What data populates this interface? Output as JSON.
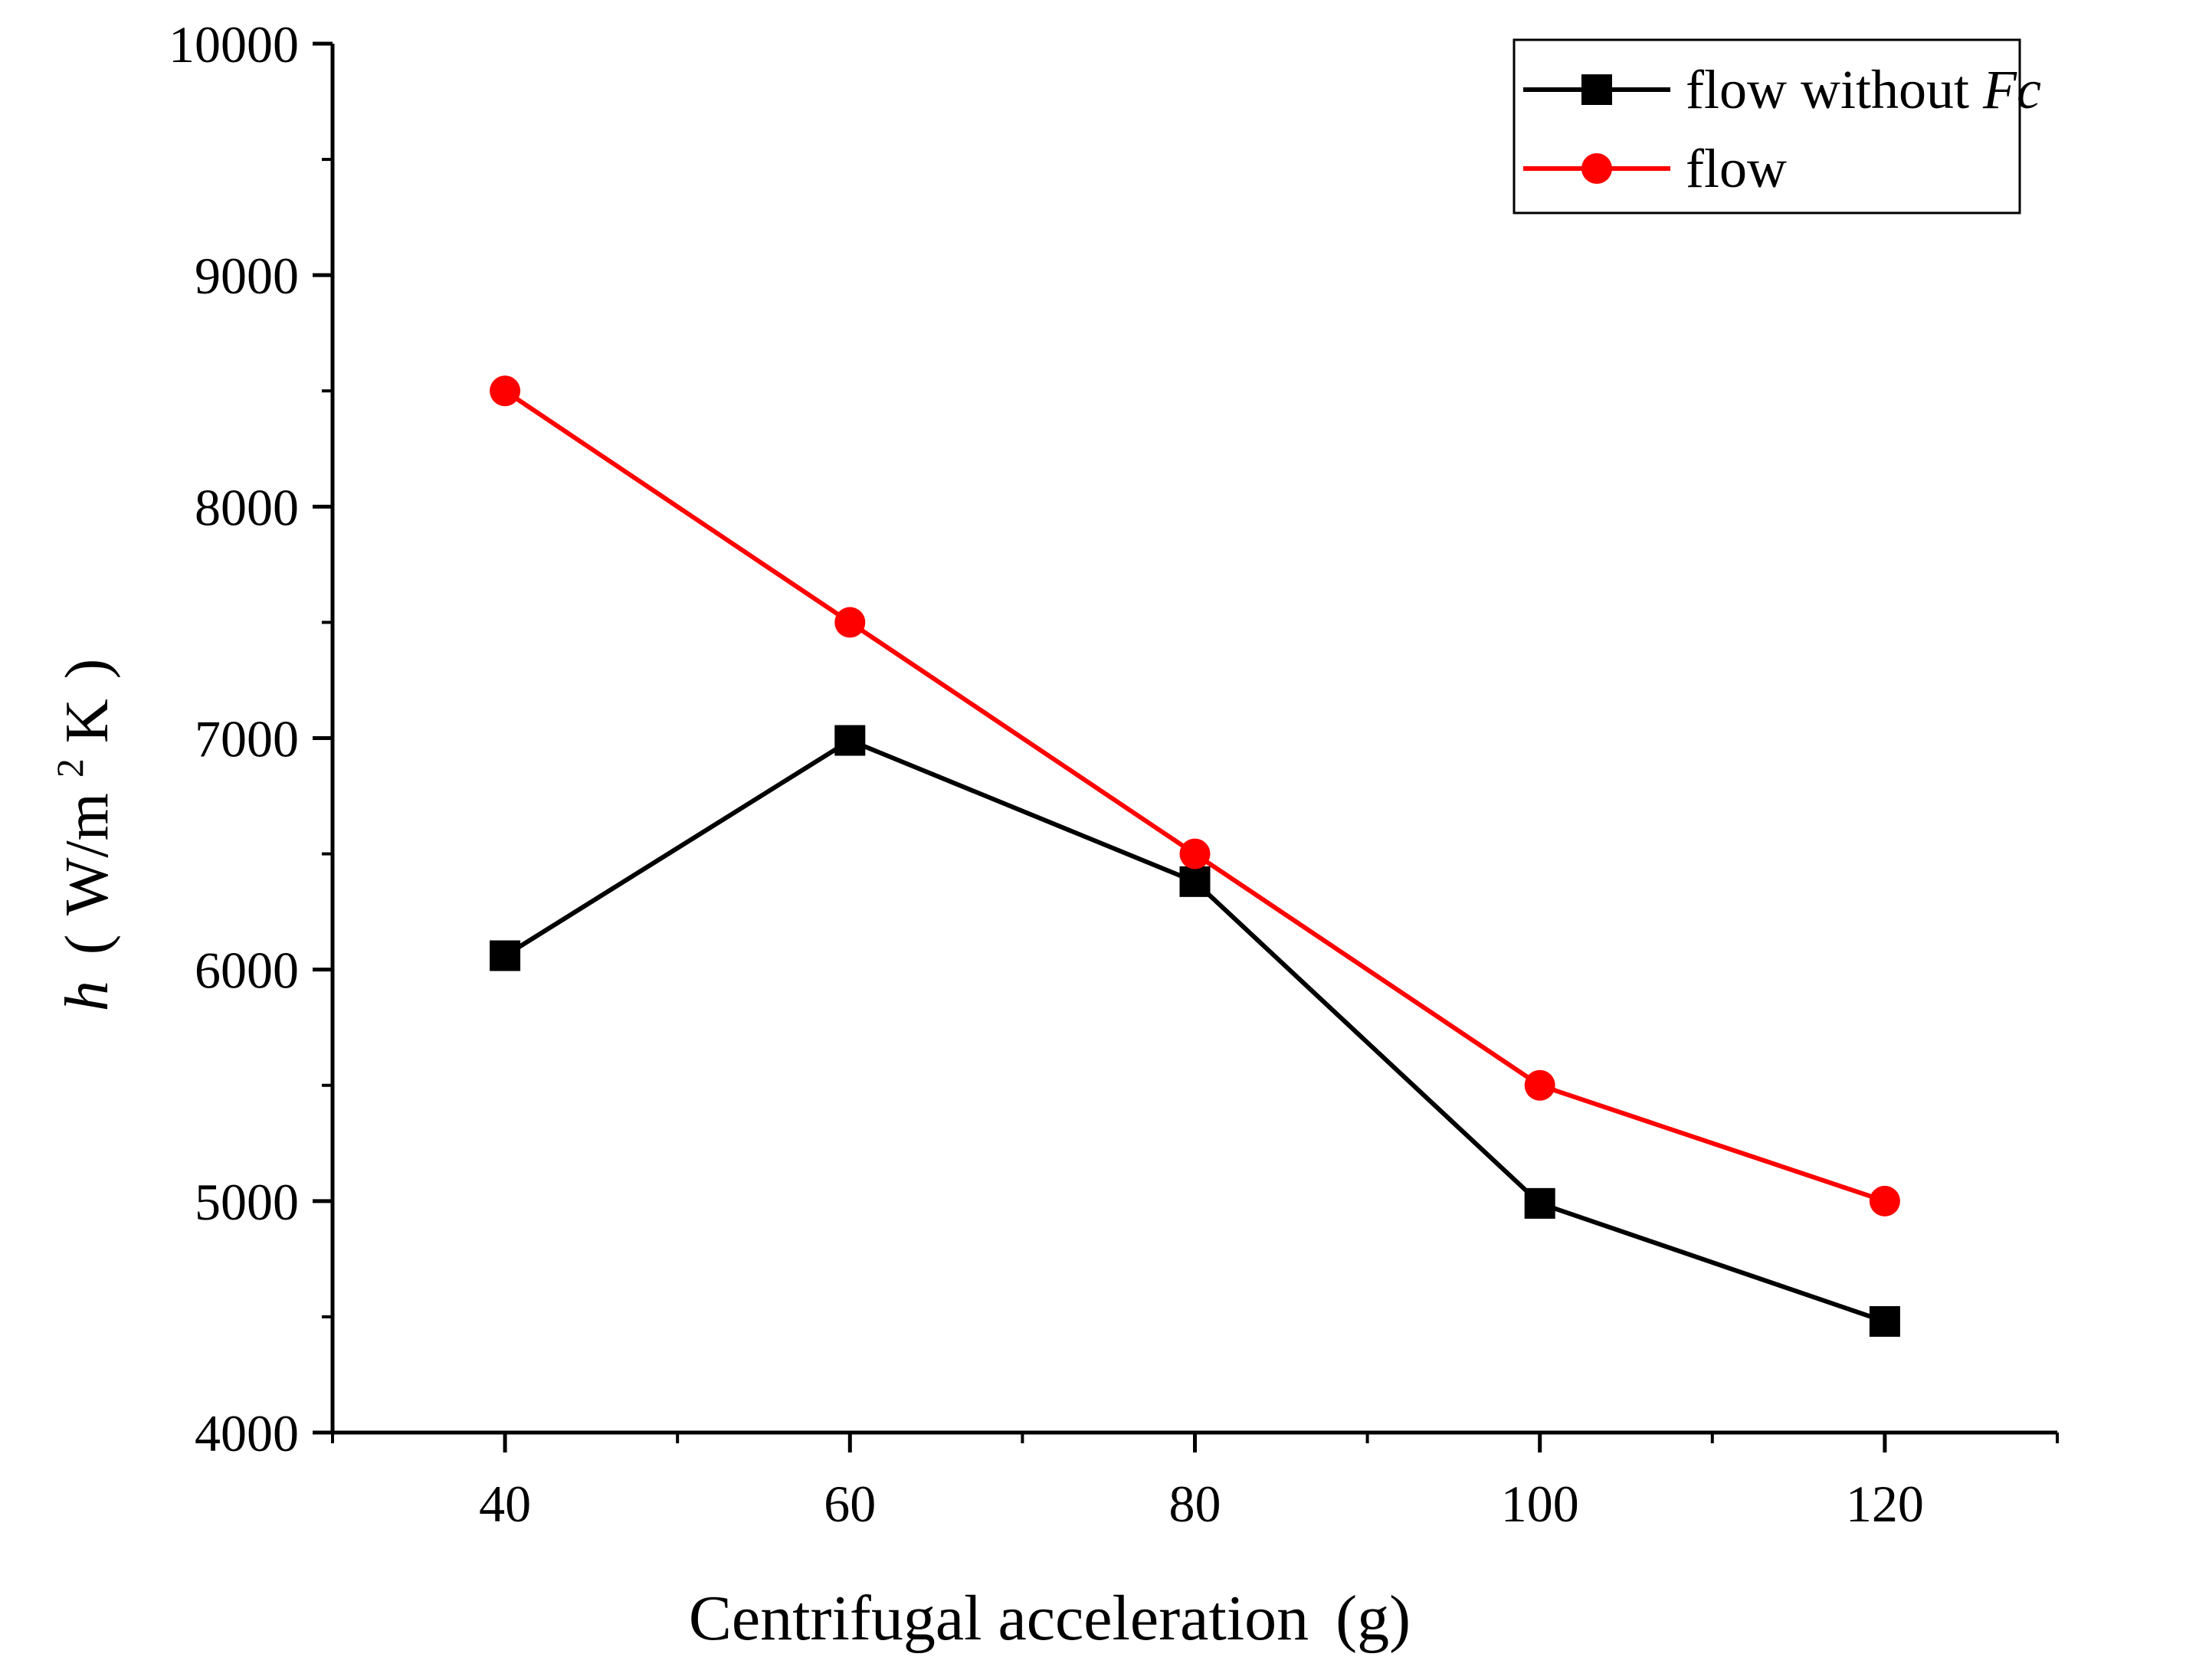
{
  "chart_data": {
    "type": "line",
    "title": "",
    "xlabel": "Centrifugal acceleration",
    "xlabel_unit": "(g)",
    "ylabel": {
      "symbol": "h",
      "open_paren": "(",
      "unit_main": "W/m",
      "unit_sup": "2",
      "unit_tail": "K",
      "close_paren": ")"
    },
    "x": [
      40,
      60,
      80,
      100,
      120
    ],
    "xlim": [
      30,
      130
    ],
    "ylim": [
      4000,
      10000
    ],
    "x_ticks": [
      40,
      60,
      80,
      100,
      120
    ],
    "x_tick_labels": [
      "40",
      "60",
      "80",
      "100",
      "120"
    ],
    "x_minor_ticks": [
      30,
      50,
      70,
      90,
      110,
      130
    ],
    "y_ticks": [
      4000,
      5000,
      6000,
      7000,
      8000,
      9000,
      10000
    ],
    "y_tick_labels": [
      "4000",
      "5000",
      "6000",
      "7000",
      "8000",
      "9000",
      "10000"
    ],
    "y_minor_ticks": [
      4500,
      5500,
      6500,
      7500,
      8500,
      9500
    ],
    "grid": false,
    "legend_position": "top-right",
    "series": [
      {
        "name": "flow without Fc",
        "name_prefix": "flow without ",
        "name_italic": "Fc",
        "color": "#000000",
        "marker": "square",
        "values": [
          6060,
          6990,
          6380,
          4990,
          4480
        ]
      },
      {
        "name": "flow",
        "name_prefix": "flow",
        "name_italic": "",
        "color": "#ff0000",
        "marker": "circle",
        "values": [
          8500,
          7500,
          6500,
          5500,
          5000
        ]
      }
    ]
  }
}
